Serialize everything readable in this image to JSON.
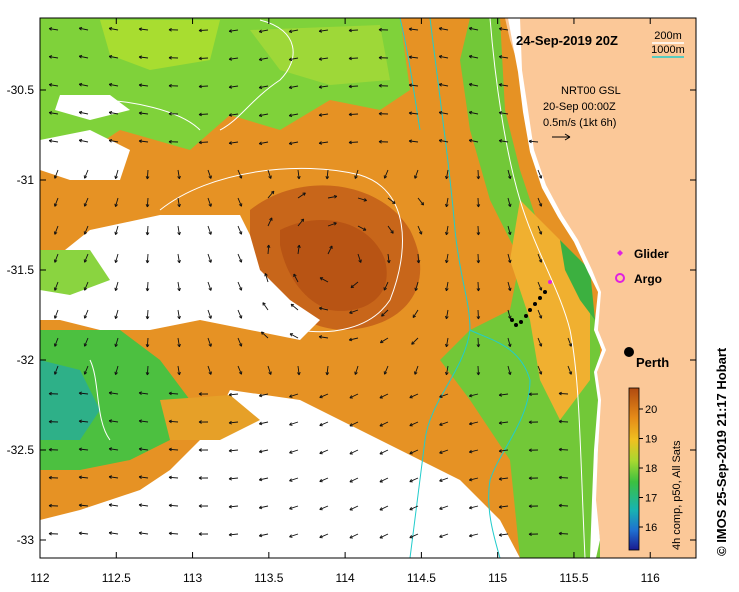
{
  "header": {
    "date_label": "24-Sep-2019 20Z"
  },
  "depth_legend": {
    "shallow": "200m",
    "deep": "1000m",
    "shallow_color": "#ffffff",
    "deep_color": "#22cccc"
  },
  "current_info": {
    "line1": "NRT00 GSL",
    "line2": "20-Sep 00:00Z",
    "line3": "0.5m/s (1kt 6h)"
  },
  "markers": {
    "glider_label": "Glider",
    "argo_label": "Argo",
    "glider_color": "#e020e0",
    "argo_color": "#e020e0"
  },
  "place": {
    "name": "Perth",
    "lon": 115.86,
    "lat": -31.95
  },
  "colorbar": {
    "title": "4h comp, p50, All Sats",
    "ticks": [
      "20",
      "19",
      "18",
      "17",
      "16"
    ]
  },
  "credit": "© IMOS 25-Sep-2019 21:17 Hobart",
  "axes": {
    "x_ticks": [
      "112",
      "112.5",
      "113",
      "113.5",
      "114",
      "114.5",
      "115",
      "115.5",
      "116"
    ],
    "y_ticks": [
      "-30.5",
      "-31",
      "-31.5",
      "-32",
      "-32.5",
      "-33"
    ],
    "xlim": [
      112,
      116.3
    ],
    "ylim": [
      -33.1,
      -30.1
    ]
  },
  "colors": {
    "land": "#fbc898",
    "no_data": "#ffffff",
    "warm": "#c8661a",
    "orange": "#e69020",
    "green": "#6ccf30",
    "cyan": "#2bb0a0"
  }
}
